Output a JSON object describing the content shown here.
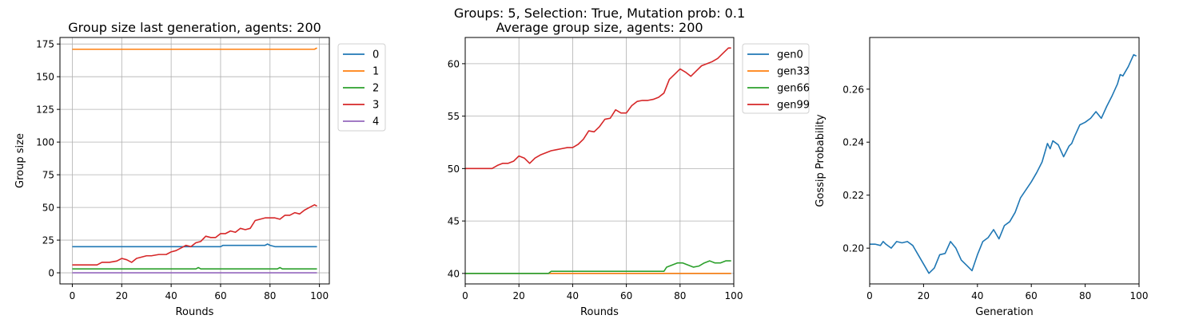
{
  "figure": {
    "suptitle_line1": "Groups: 5, Selection: True, Mutation prob: 0.1"
  },
  "chart_data": [
    {
      "type": "line",
      "title": "Group size last generation, agents: 200",
      "xlabel": "Rounds",
      "ylabel": "Group size",
      "xlim": [
        -5,
        104
      ],
      "ylim": [
        -8.5,
        180
      ],
      "xticks": [
        0,
        20,
        40,
        60,
        80,
        100
      ],
      "yticks": [
        0,
        25,
        50,
        75,
        100,
        125,
        150,
        175
      ],
      "grid": true,
      "legend_position": "outside-right",
      "series": [
        {
          "name": "0",
          "color": "#1f77b4",
          "x": [
            0,
            60,
            61,
            78,
            79,
            80,
            82,
            99
          ],
          "y": [
            20,
            20,
            21,
            21,
            22,
            21,
            20,
            20
          ]
        },
        {
          "name": "1",
          "color": "#ff7f0e",
          "x": [
            0,
            98,
            99
          ],
          "y": [
            171,
            171,
            172
          ]
        },
        {
          "name": "2",
          "color": "#2ca02c",
          "x": [
            0,
            50,
            51,
            52,
            83,
            84,
            85,
            99
          ],
          "y": [
            3,
            3,
            4,
            3,
            3,
            4,
            3,
            3
          ]
        },
        {
          "name": "3",
          "color": "#d62728",
          "x": [
            0,
            10,
            12,
            15,
            18,
            20,
            22,
            24,
            26,
            28,
            30,
            32,
            35,
            38,
            40,
            42,
            44,
            46,
            48,
            50,
            52,
            54,
            56,
            58,
            60,
            62,
            64,
            66,
            68,
            70,
            72,
            74,
            76,
            78,
            80,
            82,
            84,
            86,
            88,
            90,
            92,
            94,
            96,
            98,
            99
          ],
          "y": [
            6,
            6,
            8,
            8,
            9,
            11,
            10,
            8,
            11,
            12,
            13,
            13,
            14,
            14,
            16,
            17,
            19,
            21,
            20,
            23,
            24,
            28,
            27,
            27,
            30,
            30,
            32,
            31,
            34,
            33,
            34,
            40,
            41,
            42,
            42,
            42,
            41,
            44,
            44,
            46,
            45,
            48,
            50,
            52,
            51
          ]
        },
        {
          "name": "4",
          "color": "#9467bd",
          "x": [
            0,
            99
          ],
          "y": [
            0,
            0
          ]
        }
      ]
    },
    {
      "type": "line",
      "title": "Average group size, agents: 200",
      "xlabel": "Rounds",
      "ylabel": "",
      "xlim": [
        0,
        100
      ],
      "ylim": [
        39,
        62.5
      ],
      "xticks": [
        0,
        20,
        40,
        60,
        80,
        100
      ],
      "yticks": [
        40,
        45,
        50,
        55,
        60
      ],
      "grid": true,
      "legend_position": "outside-right",
      "series": [
        {
          "name": "gen0",
          "color": "#1f77b4",
          "x": [
            0,
            99
          ],
          "y": [
            40,
            40
          ]
        },
        {
          "name": "gen33",
          "color": "#ff7f0e",
          "x": [
            0,
            99
          ],
          "y": [
            40,
            40
          ]
        },
        {
          "name": "gen66",
          "color": "#2ca02c",
          "x": [
            0,
            31,
            32,
            74,
            75,
            77,
            79,
            81,
            83,
            85,
            87,
            89,
            91,
            93,
            95,
            97,
            99
          ],
          "y": [
            40,
            40,
            40.2,
            40.2,
            40.6,
            40.8,
            41,
            41,
            40.8,
            40.6,
            40.7,
            41,
            41.2,
            41,
            41,
            41.2,
            41.2
          ]
        },
        {
          "name": "gen99",
          "color": "#d62728",
          "x": [
            0,
            10,
            12,
            14,
            16,
            18,
            20,
            22,
            24,
            26,
            28,
            30,
            32,
            34,
            36,
            38,
            40,
            42,
            44,
            46,
            48,
            50,
            52,
            54,
            56,
            58,
            60,
            62,
            64,
            66,
            68,
            70,
            72,
            74,
            76,
            78,
            80,
            82,
            84,
            86,
            88,
            90,
            92,
            94,
            96,
            98,
            99
          ],
          "y": [
            50,
            50,
            50.3,
            50.5,
            50.5,
            50.7,
            51.2,
            51,
            50.5,
            51,
            51.3,
            51.5,
            51.7,
            51.8,
            51.9,
            52,
            52,
            52.3,
            52.8,
            53.6,
            53.5,
            54,
            54.7,
            54.8,
            55.6,
            55.3,
            55.3,
            56,
            56.4,
            56.5,
            56.5,
            56.6,
            56.8,
            57.2,
            58.5,
            59,
            59.5,
            59.2,
            58.8,
            59.3,
            59.8,
            60,
            60.2,
            60.5,
            61,
            61.5,
            61.5
          ]
        }
      ]
    },
    {
      "type": "line",
      "title": "",
      "xlabel": "Generation",
      "ylabel": "Gossip Probability",
      "xlim": [
        0,
        100
      ],
      "ylim": [
        0.1865,
        0.2795
      ],
      "xticks": [
        0,
        20,
        40,
        60,
        80,
        100
      ],
      "yticks": [
        0.2,
        0.22,
        0.24,
        0.26
      ],
      "ytick_labels": [
        "0.20",
        "0.22",
        "0.24",
        "0.26"
      ],
      "grid": false,
      "legend_position": "none",
      "series": [
        {
          "name": "",
          "color": "#1f77b4",
          "x": [
            0,
            2,
            4,
            5,
            6,
            8,
            10,
            12,
            14,
            16,
            18,
            20,
            22,
            24,
            26,
            28,
            30,
            32,
            34,
            36,
            38,
            40,
            42,
            44,
            46,
            48,
            50,
            52,
            54,
            56,
            58,
            60,
            62,
            64,
            66,
            67,
            68,
            70,
            72,
            74,
            75,
            76,
            78,
            80,
            82,
            84,
            86,
            88,
            90,
            92,
            93,
            94,
            96,
            98,
            99
          ],
          "y": [
            0.2015,
            0.2015,
            0.201,
            0.2025,
            0.2015,
            0.2,
            0.2025,
            0.202,
            0.2025,
            0.201,
            0.1975,
            0.194,
            0.1905,
            0.1925,
            0.1975,
            0.198,
            0.2025,
            0.2,
            0.1955,
            0.1935,
            0.1915,
            0.1975,
            0.2025,
            0.204,
            0.207,
            0.2035,
            0.2085,
            0.21,
            0.2135,
            0.219,
            0.222,
            0.225,
            0.2285,
            0.2325,
            0.2395,
            0.2375,
            0.2405,
            0.239,
            0.2345,
            0.2385,
            0.2395,
            0.242,
            0.2465,
            0.2475,
            0.249,
            0.2515,
            0.249,
            0.2535,
            0.2575,
            0.262,
            0.2655,
            0.265,
            0.2685,
            0.273,
            0.2725
          ]
        }
      ]
    }
  ]
}
